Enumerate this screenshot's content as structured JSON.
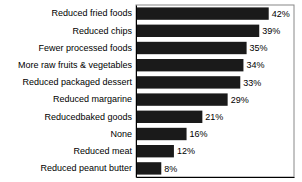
{
  "chart_data": {
    "type": "bar",
    "orientation": "horizontal",
    "categories": [
      "Reduced peanut butter",
      "Reduced meat",
      "None",
      "Reducedbaked goods",
      "Reduced margarine",
      "Reduced packaged dessert",
      "More raw fruits & vegetables",
      "Fewer processed foods",
      "Reduced chips",
      "Reduced fried foods"
    ],
    "values": [
      8,
      12,
      16,
      21,
      29,
      33,
      34,
      35,
      39,
      42
    ],
    "value_labels": [
      "8%",
      "12%",
      "16%",
      "21%",
      "29%",
      "33%",
      "34%",
      "35%",
      "39%",
      "42%"
    ],
    "color": "#1a1a1a",
    "xlim": [
      0,
      50
    ],
    "data_labels": true,
    "tick_labels": "y",
    "grid": false
  }
}
